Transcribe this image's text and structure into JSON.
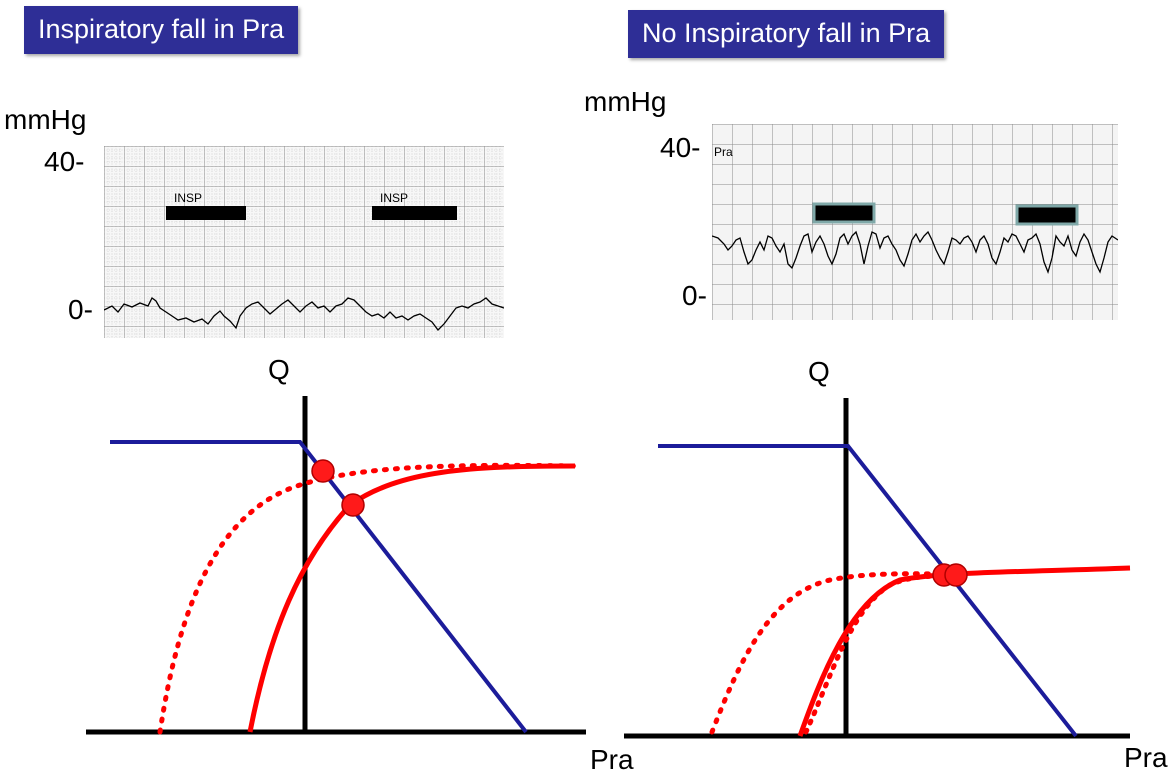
{
  "left": {
    "title": "Inspiratory fall in Pra",
    "trace": {
      "unit": "mmHg",
      "tick_high": "40-",
      "tick_low": "0-",
      "insp_labels": [
        "INSP",
        "INSP"
      ]
    },
    "plot": {
      "y_axis": "Q",
      "x_axis": "Pra"
    }
  },
  "right": {
    "title": "No Inspiratory fall in Pra",
    "trace": {
      "unit": "mmHg",
      "tick_high": "40-",
      "tick_low": "0-",
      "channel_label": "Pra"
    },
    "plot": {
      "y_axis": "Q",
      "x_axis": "Pra"
    }
  },
  "colors": {
    "title_bg": "#2e2e96",
    "venous_return": "#1c1c9a",
    "cardiac_function": "#ff0000",
    "grid": "#9a9a9a",
    "trace_bg": "#f2f2f2",
    "insp_bar_border": "#7fa8a8"
  }
}
